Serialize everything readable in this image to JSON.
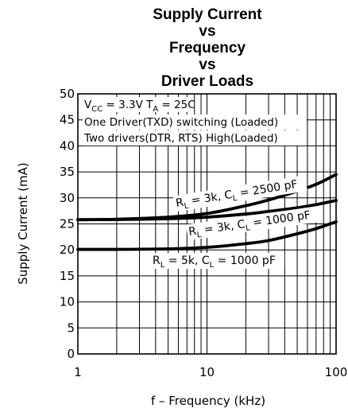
{
  "chart_data": {
    "type": "line",
    "title_lines": [
      "Supply Current",
      "vs",
      "Frequency",
      "vs",
      "Driver Loads"
    ],
    "xlabel": "f – Frequency (kHz)",
    "ylabel": "Supply Current (mA)",
    "x_scale": "log",
    "xlim": [
      1,
      100
    ],
    "ylim": [
      0,
      50
    ],
    "x_ticks": [
      1,
      10,
      100
    ],
    "x_tick_labels": [
      "1",
      "10",
      "100"
    ],
    "y_ticks": [
      0,
      5,
      10,
      15,
      20,
      25,
      30,
      35,
      40,
      45,
      50
    ],
    "y_tick_labels": [
      "0",
      "5",
      "10",
      "15",
      "20",
      "25",
      "30",
      "35",
      "40",
      "45",
      "50"
    ],
    "grid": true,
    "annotations": [
      {
        "main": "V",
        "sub": "CC",
        "rest": " = 3.3V T",
        "sub2": "A",
        "rest2": " = 25C"
      },
      {
        "main": "One Driver(TXD) switching (Loaded)"
      },
      {
        "main": "Two drivers(DTR, RTS) High(Loaded)"
      }
    ],
    "series": [
      {
        "label_parts": [
          "R",
          "L",
          " = 3k, C",
          "L",
          " = 2500 pF"
        ],
        "x": [
          1,
          2,
          5,
          10,
          20,
          30,
          50,
          70,
          100
        ],
        "y": [
          25.8,
          25.9,
          26.3,
          27.0,
          28.5,
          29.6,
          31.3,
          32.6,
          34.5
        ]
      },
      {
        "label_parts": [
          "R",
          "L",
          " = 3k, C",
          "L",
          " = 1000 pF"
        ],
        "x": [
          1,
          2,
          5,
          10,
          20,
          30,
          50,
          70,
          100
        ],
        "y": [
          25.8,
          25.85,
          26.0,
          26.3,
          26.9,
          27.4,
          28.1,
          28.7,
          29.5
        ]
      },
      {
        "label_parts": [
          "R",
          "L",
          " = 5k, C",
          "L",
          " = 1000 pF"
        ],
        "x": [
          1,
          2,
          5,
          10,
          20,
          30,
          50,
          70,
          100
        ],
        "y": [
          20.1,
          20.1,
          20.2,
          20.5,
          21.2,
          21.8,
          23.1,
          24.1,
          25.4
        ]
      }
    ]
  }
}
